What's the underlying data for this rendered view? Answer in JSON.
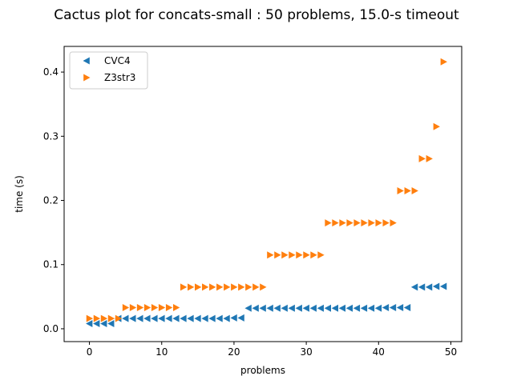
{
  "chart_data": {
    "type": "scatter",
    "title": "Cactus plot for concats-small : 50 problems, 15.0-s timeout",
    "xlabel": "problems",
    "ylabel": "time (s)",
    "xlim": [
      -3.5,
      51.5
    ],
    "ylim": [
      -0.02,
      0.44
    ],
    "xticks": [
      0,
      10,
      20,
      30,
      40,
      50
    ],
    "xtick_labels": [
      "0",
      "10",
      "20",
      "30",
      "40",
      "50"
    ],
    "yticks": [
      0.0,
      0.1,
      0.2,
      0.3,
      0.4
    ],
    "ytick_labels": [
      "0.0",
      "0.1",
      "0.2",
      "0.3",
      "0.4"
    ],
    "grid": false,
    "legend_position": "top-left",
    "series": [
      {
        "name": "CVC4",
        "marker": "triangle-left",
        "color": "#1f77b4",
        "x": [
          0,
          1,
          2,
          3,
          4,
          5,
          6,
          7,
          8,
          9,
          10,
          11,
          12,
          13,
          14,
          15,
          16,
          17,
          18,
          19,
          20,
          21,
          22,
          23,
          24,
          25,
          26,
          27,
          28,
          29,
          30,
          31,
          32,
          33,
          34,
          35,
          36,
          37,
          38,
          39,
          40,
          41,
          42,
          43,
          44,
          45,
          46,
          47,
          48,
          49
        ],
        "y": [
          0.008,
          0.008,
          0.008,
          0.008,
          0.016,
          0.016,
          0.016,
          0.016,
          0.016,
          0.016,
          0.016,
          0.016,
          0.016,
          0.016,
          0.016,
          0.016,
          0.016,
          0.016,
          0.016,
          0.016,
          0.017,
          0.017,
          0.032,
          0.032,
          0.032,
          0.032,
          0.032,
          0.032,
          0.032,
          0.032,
          0.032,
          0.032,
          0.032,
          0.032,
          0.032,
          0.032,
          0.032,
          0.032,
          0.032,
          0.032,
          0.032,
          0.033,
          0.033,
          0.033,
          0.033,
          0.065,
          0.065,
          0.065,
          0.066,
          0.066
        ]
      },
      {
        "name": "Z3str3",
        "marker": "triangle-right",
        "color": "#ff7f0e",
        "x": [
          0,
          1,
          2,
          3,
          4,
          5,
          6,
          7,
          8,
          9,
          10,
          11,
          12,
          13,
          14,
          15,
          16,
          17,
          18,
          19,
          20,
          21,
          22,
          23,
          24,
          25,
          26,
          27,
          28,
          29,
          30,
          31,
          32,
          33,
          34,
          35,
          36,
          37,
          38,
          39,
          40,
          41,
          42,
          43,
          44,
          45,
          46,
          47,
          48,
          49
        ],
        "y": [
          0.016,
          0.016,
          0.016,
          0.016,
          0.016,
          0.033,
          0.033,
          0.033,
          0.033,
          0.033,
          0.033,
          0.033,
          0.033,
          0.065,
          0.065,
          0.065,
          0.065,
          0.065,
          0.065,
          0.065,
          0.065,
          0.065,
          0.065,
          0.065,
          0.065,
          0.115,
          0.115,
          0.115,
          0.115,
          0.115,
          0.115,
          0.115,
          0.115,
          0.165,
          0.165,
          0.165,
          0.165,
          0.165,
          0.165,
          0.165,
          0.165,
          0.165,
          0.165,
          0.215,
          0.215,
          0.215,
          0.265,
          0.265,
          0.315,
          0.416
        ]
      }
    ]
  }
}
